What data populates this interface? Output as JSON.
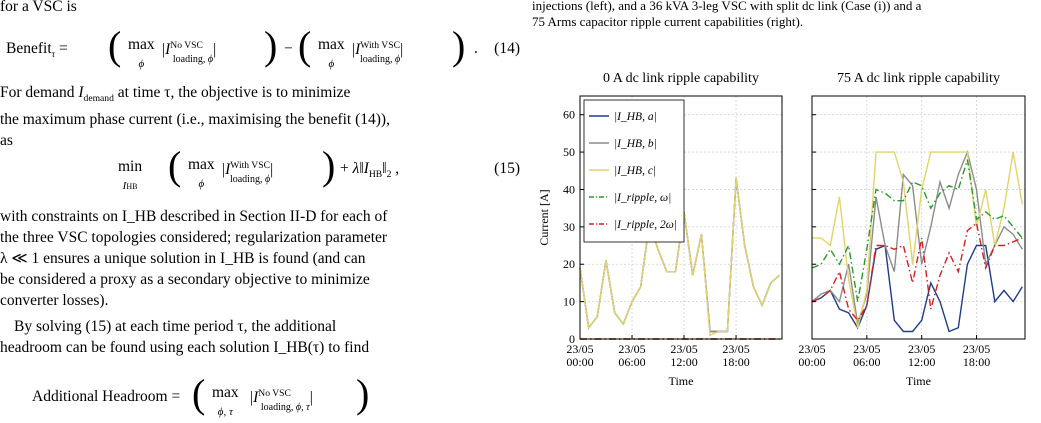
{
  "left": {
    "intro_line": "for a VSC is",
    "eq14_label": "Benefit",
    "eq14_number": "(14)",
    "para1": "For demand I_demand at time τ, the objective is to minimize the maximum phase current (i.e., maximising the benefit (14)), as",
    "para1_line1": "For demand",
    "para1_line1b": "at time τ, the objective is to minimize",
    "para1_line2": "the maximum phase current (i.e., maximising the benefit (14)),",
    "para1_line3": "as",
    "eq15_number": "(15)",
    "para2_lines": [
      "with constraints on I_HB described in Section II-D for each of",
      "the three VSC topologies considered; regularization parameter",
      "λ ≪ 1 ensures a unique solution in I_HB is found (and can",
      "be considered a proxy as a secondary objective to minimize",
      "converter losses)."
    ],
    "para3_lines": [
      "By solving (15) at each time period τ, the additional",
      "headroom can be found using each solution I_HB(τ) to find"
    ],
    "eq16_label": "Additional Headroom ="
  },
  "right": {
    "caption_lines": [
      "injections (left), and a 36 kVA 3-leg VSC with split dc link (Case (i)) and a",
      "75 Arms capacitor ripple current capabilities (right)."
    ]
  },
  "chart_data": [
    {
      "type": "line",
      "title": "0 A dc link ripple capability",
      "xlabel": "Time",
      "ylabel": "Current [A]",
      "xticks": [
        "23/05\n00:00",
        "23/05\n06:00",
        "23/05\n12:00",
        "23/05\n18:00"
      ],
      "yticks": [
        0,
        10,
        20,
        30,
        40,
        50,
        60
      ],
      "ylim": [
        0,
        65
      ],
      "grid": true,
      "legend": "top-left",
      "x_hours": [
        0,
        1,
        2,
        3,
        4,
        5,
        6,
        7,
        8,
        9,
        10,
        11,
        12,
        13,
        14,
        15,
        16,
        17,
        18,
        19,
        20,
        21,
        22,
        23
      ],
      "series": [
        {
          "name": "|I_HB, a|",
          "color": "#1f3c88",
          "style": "solid",
          "values": [
            19,
            3,
            6,
            21,
            7,
            4,
            10,
            14,
            31,
            24,
            18,
            18,
            34,
            17,
            28,
            2,
            2,
            2,
            43,
            25,
            14,
            9,
            15,
            17
          ]
        },
        {
          "name": "|I_HB, b|",
          "color": "#8c8c8c",
          "style": "solid",
          "values": [
            19,
            3,
            6,
            21,
            7,
            4,
            10,
            14,
            31,
            24,
            18,
            18,
            34,
            17,
            28,
            2,
            2,
            2,
            43,
            25,
            14,
            9,
            15,
            17
          ]
        },
        {
          "name": "|I_HB, c|",
          "color": "#e3d36a",
          "style": "solid",
          "values": [
            19,
            3,
            6,
            21,
            7,
            4,
            10,
            14,
            31,
            24,
            18,
            18,
            34,
            17,
            28,
            1,
            2,
            2,
            43,
            25,
            14,
            9,
            15,
            17
          ]
        },
        {
          "name": "|I_ripple, ω|",
          "color": "#2a9a2a",
          "style": "dashdot",
          "values": [
            0,
            0,
            0,
            0,
            0,
            0,
            0,
            0,
            0,
            0,
            0,
            0,
            0,
            0,
            0,
            0,
            0,
            0,
            0,
            0,
            0,
            0,
            0,
            0
          ]
        },
        {
          "name": "|I_ripple, 2ω|",
          "color": "#d42020",
          "style": "dashdot",
          "values": [
            0,
            0,
            0,
            0,
            0,
            0,
            0,
            0,
            0,
            0,
            0,
            0,
            0,
            0,
            0,
            0,
            0,
            0,
            0,
            0,
            0,
            0,
            0,
            0
          ]
        }
      ]
    },
    {
      "type": "line",
      "title": "75 A dc link ripple capability",
      "xlabel": "Time",
      "xticks": [
        "23/05\n00:00",
        "23/05\n06:00",
        "23/05\n12:00",
        "23/05\n18:00"
      ],
      "ylim": [
        0,
        65
      ],
      "grid": true,
      "x_hours": [
        0,
        1,
        2,
        3,
        4,
        5,
        6,
        7,
        8,
        9,
        10,
        11,
        12,
        13,
        14,
        15,
        16,
        17,
        18,
        19,
        20,
        21,
        22,
        23
      ],
      "series": [
        {
          "name": "|I_HB, a|",
          "color": "#1f3c88",
          "style": "solid",
          "values": [
            10,
            11,
            13,
            8,
            7,
            3,
            9,
            24,
            25,
            5,
            2,
            2,
            5,
            15,
            10,
            2,
            3,
            20,
            25,
            25,
            10,
            13,
            10,
            14
          ]
        },
        {
          "name": "|I_HB, b|",
          "color": "#8c8c8c",
          "style": "solid",
          "values": [
            10,
            12,
            13,
            10,
            20,
            4,
            12,
            38,
            25,
            18,
            44,
            41,
            20,
            30,
            42,
            35,
            44,
            50,
            40,
            20,
            25,
            30,
            28,
            24
          ]
        },
        {
          "name": "|I_HB, c|",
          "color": "#e3d36a",
          "style": "solid",
          "values": [
            27,
            27,
            25,
            38,
            16,
            3,
            13,
            50,
            50,
            50,
            42,
            20,
            40,
            50,
            50,
            50,
            50,
            50,
            30,
            40,
            25,
            35,
            50,
            36
          ]
        },
        {
          "name": "|I_ripple, ω|",
          "color": "#2a9a2a",
          "style": "dashdot",
          "values": [
            19,
            20,
            24,
            20,
            25,
            10,
            24,
            40,
            39,
            37,
            37,
            42,
            41,
            35,
            39,
            41,
            40,
            48,
            32,
            34,
            32,
            33,
            30,
            27
          ]
        },
        {
          "name": "|I_ripple, 2ω|",
          "color": "#d42020",
          "style": "dashdot",
          "values": [
            10,
            11,
            13,
            18,
            8,
            5,
            9,
            25,
            25,
            24,
            25,
            15,
            27,
            8,
            17,
            23,
            18,
            29,
            31,
            19,
            25,
            25,
            26,
            27
          ]
        }
      ]
    }
  ]
}
